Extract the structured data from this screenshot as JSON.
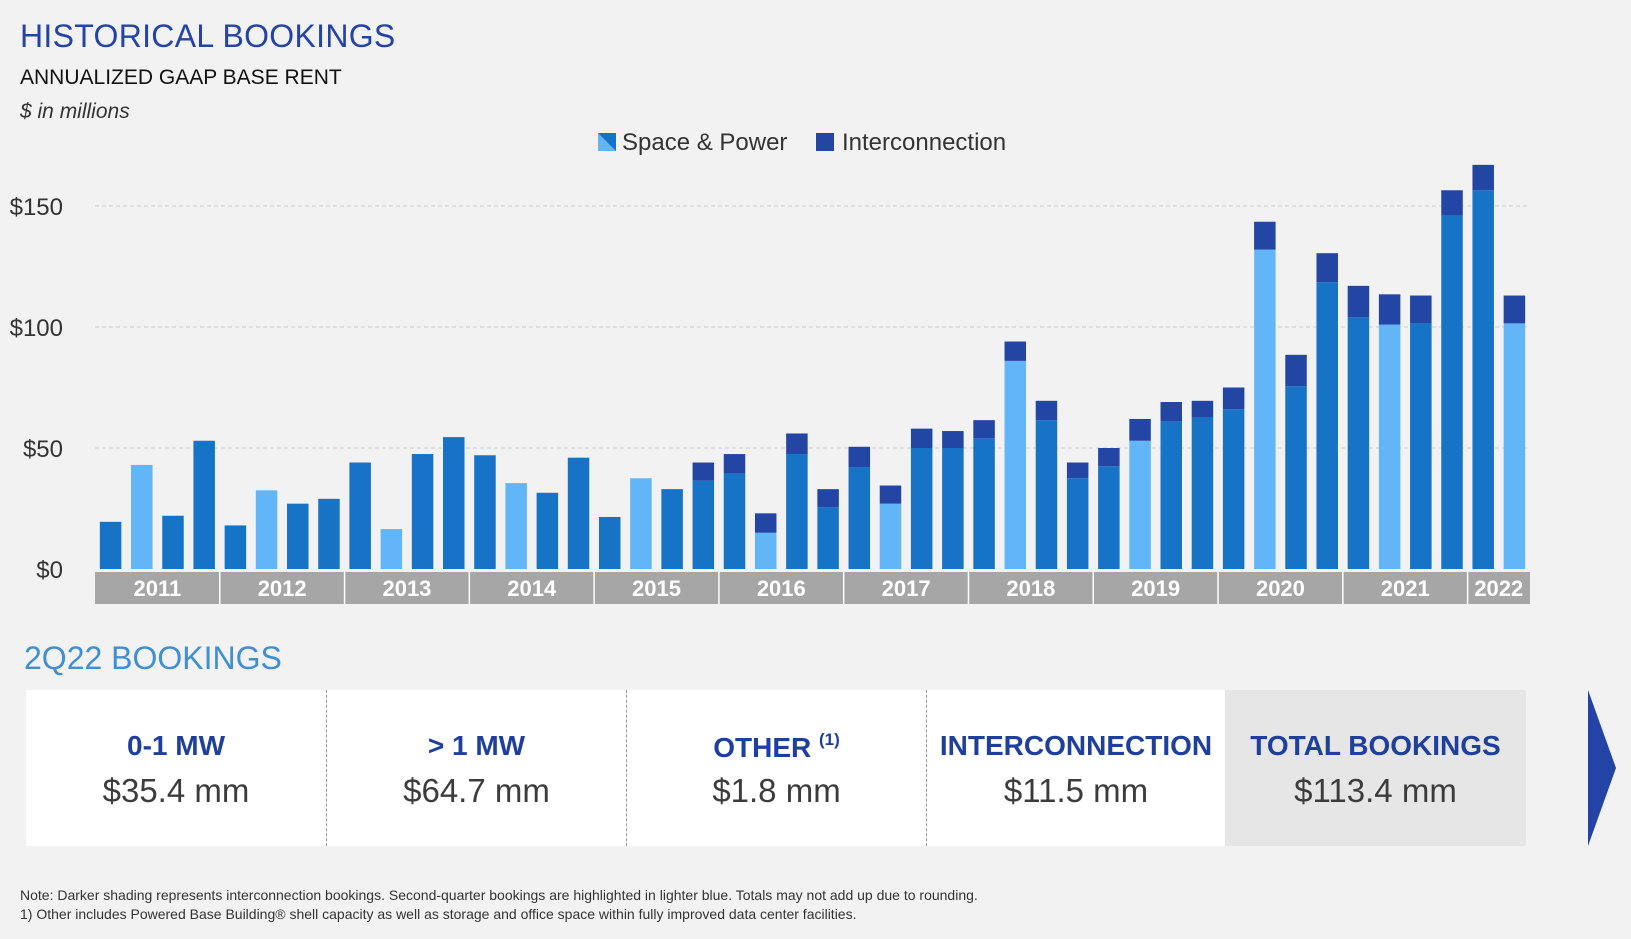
{
  "header": {
    "title": "HISTORICAL BOOKINGS",
    "subtitle": "ANNUALIZED GAAP BASE RENT",
    "units": "$ in millions"
  },
  "colors": {
    "space_power_q2": "#62b6f8",
    "space_power": "#1673c6",
    "interconnection": "#2345a3",
    "year_band": "#a6a6a6",
    "grid": "#cccccc",
    "title_blue": "#2443a6"
  },
  "chart_data": {
    "type": "bar",
    "stacked": true,
    "title": "HISTORICAL BOOKINGS",
    "subtitle": "ANNUALIZED GAAP BASE RENT",
    "ylabel": "$ in millions",
    "ylim": [
      0,
      160
    ],
    "yticks": [
      {
        "value": 0,
        "label": "$0"
      },
      {
        "value": 50,
        "label": "$50"
      },
      {
        "value": 100,
        "label": "$100"
      },
      {
        "value": 150,
        "label": "$150"
      }
    ],
    "grid": true,
    "legend": {
      "position": "top-center",
      "items": [
        "Space & Power",
        "Interconnection"
      ]
    },
    "years": [
      {
        "label": "2011",
        "quarters": 4
      },
      {
        "label": "2012",
        "quarters": 4
      },
      {
        "label": "2013",
        "quarters": 4
      },
      {
        "label": "2014",
        "quarters": 4
      },
      {
        "label": "2015",
        "quarters": 4
      },
      {
        "label": "2016",
        "quarters": 4
      },
      {
        "label": "2017",
        "quarters": 4
      },
      {
        "label": "2018",
        "quarters": 4
      },
      {
        "label": "2019",
        "quarters": 4
      },
      {
        "label": "2020",
        "quarters": 4
      },
      {
        "label": "2021",
        "quarters": 4
      },
      {
        "label": "2022",
        "quarters": 2
      }
    ],
    "categories": [
      "1Q11",
      "2Q11",
      "3Q11",
      "4Q11",
      "1Q12",
      "2Q12",
      "3Q12",
      "4Q12",
      "1Q13",
      "2Q13",
      "3Q13",
      "4Q13",
      "1Q14",
      "2Q14",
      "3Q14",
      "4Q14",
      "1Q15",
      "2Q15",
      "3Q15",
      "4Q15",
      "1Q16",
      "2Q16",
      "3Q16",
      "4Q16",
      "1Q17",
      "2Q17",
      "3Q17",
      "4Q17",
      "1Q18",
      "2Q18",
      "3Q18",
      "4Q18",
      "1Q19",
      "2Q19",
      "3Q19",
      "4Q19",
      "1Q20",
      "2Q20",
      "3Q20",
      "4Q20",
      "1Q21",
      "2Q21",
      "3Q21",
      "4Q21",
      "1Q22",
      "2Q22"
    ],
    "series": [
      {
        "name": "Space & Power",
        "values": [
          19.5,
          43,
          22,
          53,
          18,
          32.5,
          27,
          29,
          44,
          16.5,
          47.5,
          54.5,
          47,
          35.5,
          31.5,
          46,
          21.5,
          37.5,
          33,
          36.5,
          39.5,
          15,
          47.5,
          25.5,
          42,
          27,
          50,
          50,
          54,
          86,
          61.5,
          37.5,
          42.5,
          53,
          61,
          62.5,
          66,
          132,
          75.5,
          118.5,
          104,
          101,
          101.5,
          146,
          156.5,
          101.5
        ]
      },
      {
        "name": "Interconnection",
        "values": [
          0,
          0,
          0,
          0,
          0,
          0,
          0,
          0,
          0,
          0,
          0,
          0,
          0,
          0,
          0,
          0,
          0,
          0,
          0,
          7.5,
          8,
          8,
          8.5,
          7.5,
          8.5,
          7.5,
          8,
          7,
          7.5,
          8,
          8,
          6.5,
          7.5,
          9,
          8,
          7,
          9,
          11.5,
          13,
          12,
          13,
          12.5,
          11.5,
          10.5,
          10.5,
          11.5
        ]
      }
    ]
  },
  "bookings": {
    "section_title": "2Q22 BOOKINGS",
    "cards": [
      {
        "label": "0-1 MW",
        "value": "$35.4 mm"
      },
      {
        "label": "> 1 MW",
        "value": "$64.7 mm"
      },
      {
        "label": "OTHER",
        "footnote_ref": "(1)",
        "value": "$1.8 mm"
      },
      {
        "label": "INTERCONNECTION",
        "value": "$11.5 mm"
      },
      {
        "label": "TOTAL BOOKINGS",
        "value": "$113.4 mm"
      }
    ]
  },
  "notes": {
    "line1": "Note:  Darker shading represents interconnection bookings.  Second-quarter bookings are highlighted in lighter blue.  Totals may not add up due to rounding.",
    "line2": "1)  Other includes Powered Base Building® shell capacity as well as storage and office space within fully improved data center facilities."
  }
}
